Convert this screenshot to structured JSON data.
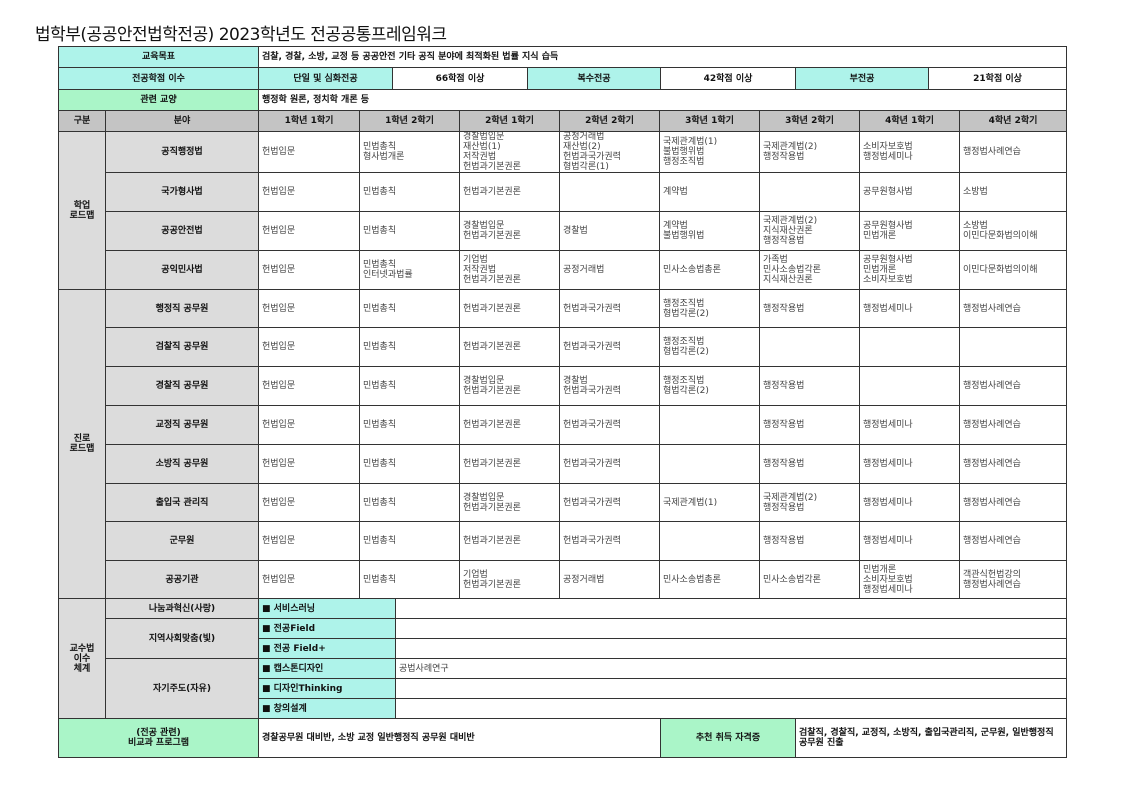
{
  "title": "법학부(공공안전법학전공) 2023학년도 전공공통프레임워크",
  "goal": {
    "label": "교육목표",
    "value": "검찰, 경찰, 소방, 교정 등 공공안전 기타 공직 분야에 최적화된 법률 지식 습득"
  },
  "credits": {
    "label": "전공학점 이수",
    "single_label": "단일 및 심화전공",
    "single_value": "66학점 이상",
    "double_label": "복수전공",
    "double_value": "42학점 이상",
    "minor_label": "부전공",
    "minor_value": "21학점 이상"
  },
  "liberal": {
    "label": "관련 교양",
    "value": "행정학 원론, 정치학 개론 등"
  },
  "header": [
    "구분",
    "분야",
    "1학년 1학기",
    "1학년 2학기",
    "2학년 1학기",
    "2학년 2학기",
    "3학년 1학기",
    "3학년 2학기",
    "4학년 1학기",
    "4학년 2학기"
  ],
  "groups": [
    {
      "label": "학업\n로드맵",
      "rows": [
        {
          "field": "공직행정법",
          "cells": [
            "헌법입문",
            "민법총칙\n형사법개론",
            "경찰법입문\n재산법(1)\n저작권법\n헌법과기본권론",
            "공정거래법\n재산법(2)\n헌법과국가권력\n형법각론(1)",
            "국제관계법(1)\n불법행위법\n행정조직법",
            "국제관계법(2)\n행정작용법",
            "소비자보호법\n행정법세미나",
            "행정법사례연습"
          ]
        },
        {
          "field": "국가형사법",
          "cells": [
            "헌법입문",
            "민법총칙",
            "헌법과기본권론",
            "",
            "계약법",
            "",
            "공무원형사법",
            "소방법"
          ]
        },
        {
          "field": "공공안전법",
          "cells": [
            "헌법입문",
            "민법총칙",
            "경찰법입문\n헌법과기본권론",
            "경찰법",
            "계약법\n불법행위법",
            "국제관계법(2)\n지식재산권론\n행정작용법",
            "공무원형사법\n민법개론",
            "소방법\n이민다문화법의이해"
          ]
        },
        {
          "field": "공익민사법",
          "cells": [
            "헌법입문",
            "민법총칙\n인터넷과법률",
            "기업법\n저작권법\n헌법과기본권론",
            "공정거래법",
            "민사소송법총론",
            "가족법\n민사소송법각론\n지식재산권론",
            "공무원형사법\n민법개론\n소비자보호법",
            "이민다문화법의이해"
          ]
        }
      ]
    },
    {
      "label": "진로\n로드맵",
      "rows": [
        {
          "field": "행정직 공무원",
          "cells": [
            "헌법입문",
            "민법총칙",
            "헌법과기본권론",
            "헌법과국가권력",
            "행정조직법\n형법각론(2)",
            "행정작용법",
            "행정법세미나",
            "행정법사례연습"
          ]
        },
        {
          "field": "검찰직 공무원",
          "cells": [
            "헌법입문",
            "민법총칙",
            "헌법과기본권론",
            "헌법과국가권력",
            "행정조직법\n형법각론(2)",
            "",
            "",
            ""
          ]
        },
        {
          "field": "경찰직 공무원",
          "cells": [
            "헌법입문",
            "민법총칙",
            "경찰법입문\n헌법과기본권론",
            "경찰법\n헌법과국가권력",
            "행정조직법\n형법각론(2)",
            "행정작용법",
            "",
            "행정법사례연습"
          ]
        },
        {
          "field": "교정직 공무원",
          "cells": [
            "헌법입문",
            "민법총칙",
            "헌법과기본권론",
            "헌법과국가권력",
            "",
            "행정작용법",
            "행정법세미나",
            "행정법사례연습"
          ]
        },
        {
          "field": "소방직 공무원",
          "cells": [
            "헌법입문",
            "민법총칙",
            "헌법과기본권론",
            "헌법과국가권력",
            "",
            "행정작용법",
            "행정법세미나",
            "행정법사례연습"
          ]
        },
        {
          "field": "출입국 관리직",
          "cells": [
            "헌법입문",
            "민법총칙",
            "경찰법입문\n헌법과기본권론",
            "헌법과국가권력",
            "국제관계법(1)",
            "국제관계법(2)\n행정작용법",
            "행정법세미나",
            "행정법사례연습"
          ]
        },
        {
          "field": "군무원",
          "cells": [
            "헌법입문",
            "민법총칙",
            "헌법과기본권론",
            "헌법과국가권력",
            "",
            "행정작용법",
            "행정법세미나",
            "행정법사례연습"
          ]
        },
        {
          "field": "공공기관",
          "cells": [
            "헌법입문",
            "민법총칙",
            "기업법\n헌법과기본권론",
            "공정거래법",
            "민사소송법총론",
            "민사소송법각론",
            "민법개론\n소비자보호법\n행정법세미나",
            "객관식헌법강의\n행정법사례연습"
          ]
        }
      ]
    }
  ],
  "pedagogy": {
    "label": "교수법\n이수\n체계",
    "cat1": "나눔과혁신(사랑)",
    "cat2": "지역사회맞춤(빛)",
    "cat3": "자기주도(자유)",
    "items": [
      {
        "label": "■ 서비스러닝",
        "value": ""
      },
      {
        "label": "■ 전공Field",
        "value": ""
      },
      {
        "label": "■ 전공 Field+",
        "value": ""
      },
      {
        "label": "■ 캡스톤디자인",
        "value": "공법사례연구"
      },
      {
        "label": "■ 디자인Thinking",
        "value": ""
      },
      {
        "label": "■ 창의설계",
        "value": ""
      }
    ]
  },
  "extra": {
    "label": "(전공 관련)\n비교과 프로그램",
    "value": "경찰공무원 대비반, 소방 교정 일반행정직 공무원 대비반",
    "cert_label": "추천 취득 자격증",
    "cert_value": "검찰직, 경찰직, 교정직, 소방직, 출입국관리직, 군무원, 일반행정직 공무원 진출"
  },
  "colors": {
    "cyan": "#aef3ea",
    "green": "#aaf5c8",
    "gray": "#dcdcdc"
  }
}
